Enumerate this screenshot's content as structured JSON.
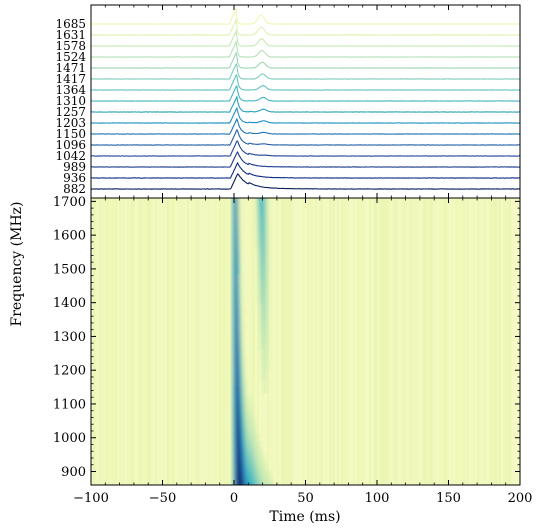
{
  "chart_data": [
    {
      "type": "line",
      "panel": "pulse-profiles",
      "x_range": [
        -100,
        200
      ],
      "channel_frequencies_mhz": [
        882,
        936,
        989,
        1042,
        1096,
        1150,
        1203,
        1257,
        1310,
        1364,
        1417,
        1471,
        1524,
        1578,
        1631,
        1685
      ],
      "labels": [
        "882",
        "936",
        "989",
        "1042",
        "1096",
        "1150",
        "1203",
        "1257",
        "1310",
        "1364",
        "1417",
        "1471",
        "1524",
        "1578",
        "1631",
        "1685"
      ],
      "colors": [
        "#081d58",
        "#0c2c84",
        "#1a3a8f",
        "#20469b",
        "#225ea8",
        "#1d74b3",
        "#1d91c0",
        "#2ba0c2",
        "#41b6c4",
        "#5fc4be",
        "#7fcdbb",
        "#9bd6b8",
        "#b5e1b6",
        "#c7e9b4",
        "#dff2b2",
        "#edf8b1"
      ]
    },
    {
      "type": "heatmap",
      "panel": "dynamic-spectrum",
      "xlabel": "Time (ms)",
      "ylabel": "Frequency (MHz)",
      "xlim": [
        -100,
        200
      ],
      "ylim": [
        860,
        1710
      ],
      "x_ticks": [
        -100,
        -50,
        0,
        50,
        100,
        150,
        200
      ],
      "x_tick_labels": [
        "−100",
        "−50",
        "0",
        "50",
        "100",
        "150",
        "200"
      ],
      "y_ticks": [
        900,
        1000,
        1100,
        1200,
        1300,
        1400,
        1500,
        1600,
        1700
      ],
      "y_tick_labels": [
        "900",
        "1000",
        "1100",
        "1200",
        "1300",
        "1400",
        "1500",
        "1600",
        "1700"
      ],
      "colormap": [
        "#ffffd9",
        "#edf8b1",
        "#c7e9b4",
        "#7fcdbb",
        "#41b6c4",
        "#1d91c0",
        "#225ea8",
        "#253494",
        "#081d58"
      ]
    }
  ]
}
